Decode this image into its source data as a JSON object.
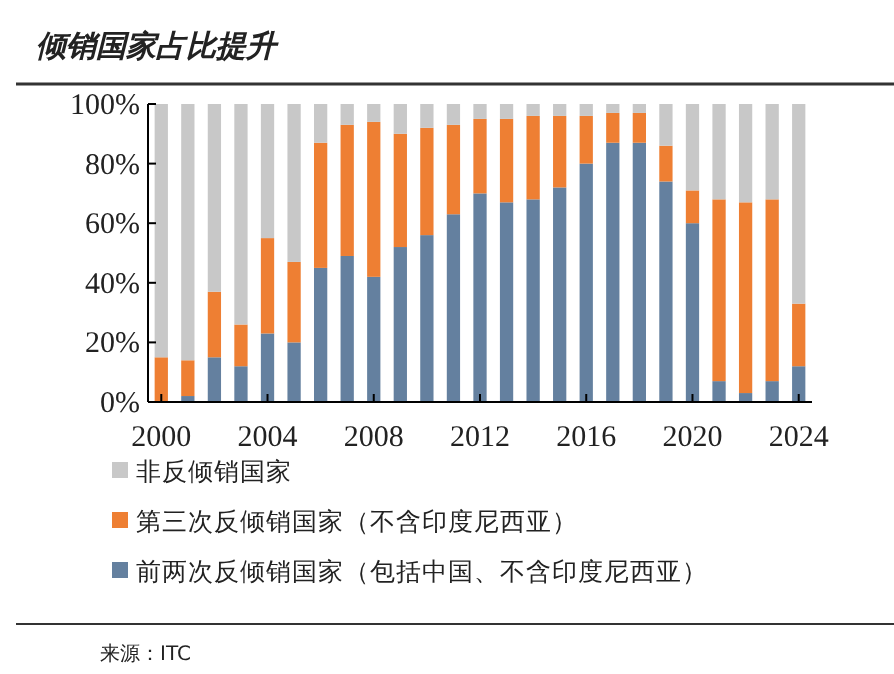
{
  "chart_data": {
    "type": "bar",
    "stacked": true,
    "title": "倾销国家占比提升",
    "x": [
      2000,
      2001,
      2002,
      2003,
      2004,
      2005,
      2006,
      2007,
      2008,
      2009,
      2010,
      2011,
      2012,
      2013,
      2014,
      2015,
      2016,
      2017,
      2018,
      2019,
      2020,
      2021,
      2022,
      2023,
      2024
    ],
    "xlim": [
      1999.5,
      2024.5
    ],
    "xticks": [
      2000,
      2004,
      2008,
      2012,
      2016,
      2020,
      2024
    ],
    "ylim": [
      0,
      100
    ],
    "yticks": [
      {
        "value": 0,
        "label": "0%"
      },
      {
        "value": 20,
        "label": "20%"
      },
      {
        "value": 40,
        "label": "40%"
      },
      {
        "value": 60,
        "label": "60%"
      },
      {
        "value": 80,
        "label": "80%"
      },
      {
        "value": 100,
        "label": "100%"
      }
    ],
    "legend": "bottom",
    "series": [
      {
        "name": "前两次反倾销国家（包括中国、不含印度尼西亚）",
        "color": "#64809f",
        "values": [
          0,
          2,
          15,
          12,
          23,
          20,
          45,
          49,
          42,
          52,
          56,
          63,
          70,
          67,
          68,
          72,
          80,
          87,
          87,
          74,
          60,
          7,
          3,
          7,
          12
        ]
      },
      {
        "name": "第三次反倾销国家（不含印度尼西亚）",
        "color": "#ee7f33",
        "values": [
          15,
          12,
          22,
          14,
          32,
          27,
          42,
          44,
          52,
          38,
          36,
          30,
          25,
          28,
          28,
          24,
          16,
          10,
          10,
          12,
          11,
          61,
          64,
          61,
          21
        ]
      },
      {
        "name": "非反倾销国家",
        "color": "#c8c8c8",
        "values": [
          85,
          86,
          63,
          74,
          45,
          53,
          13,
          7,
          6,
          10,
          8,
          7,
          5,
          5,
          4,
          4,
          4,
          3,
          3,
          14,
          29,
          32,
          33,
          32,
          67
        ]
      }
    ],
    "annotations": [
      "来源：ITC"
    ]
  }
}
